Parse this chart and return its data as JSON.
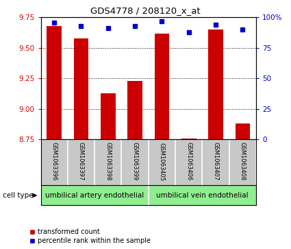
{
  "title": "GDS4778 / 208120_x_at",
  "samples": [
    "GSM1063396",
    "GSM1063397",
    "GSM1063398",
    "GSM1063399",
    "GSM1063405",
    "GSM1063406",
    "GSM1063407",
    "GSM1063408"
  ],
  "transformed_count": [
    9.68,
    9.58,
    9.13,
    9.23,
    9.62,
    8.76,
    9.65,
    8.88
  ],
  "percentile_rank": [
    96,
    93,
    91,
    93,
    97,
    88,
    94,
    90
  ],
  "ylim_left": [
    8.75,
    9.75
  ],
  "ylim_right": [
    0,
    100
  ],
  "yticks_left": [
    8.75,
    9.0,
    9.25,
    9.5,
    9.75
  ],
  "yticks_right": [
    0,
    25,
    50,
    75,
    100
  ],
  "cell_types": [
    {
      "label": "umbilical artery endothelial",
      "samples_idx": [
        0,
        1,
        2,
        3
      ],
      "color": "#90EE90"
    },
    {
      "label": "umbilical vein endothelial",
      "samples_idx": [
        4,
        5,
        6,
        7
      ],
      "color": "#90EE90"
    }
  ],
  "bar_color": "#CC0000",
  "dot_color": "#0000CC",
  "grid_color": "#000000",
  "label_color_left": "#CC0000",
  "label_color_right": "#0000CC",
  "baseline": 8.75,
  "sample_bg_color": "#C8C8C8",
  "sample_divider_color": "#FFFFFF",
  "celltype_bg_color": "#90EE90",
  "celltype_divider_color": "#FFFFFF",
  "legend_labels": [
    "transformed count",
    "percentile rank within the sample"
  ],
  "cell_type_label": "cell type"
}
